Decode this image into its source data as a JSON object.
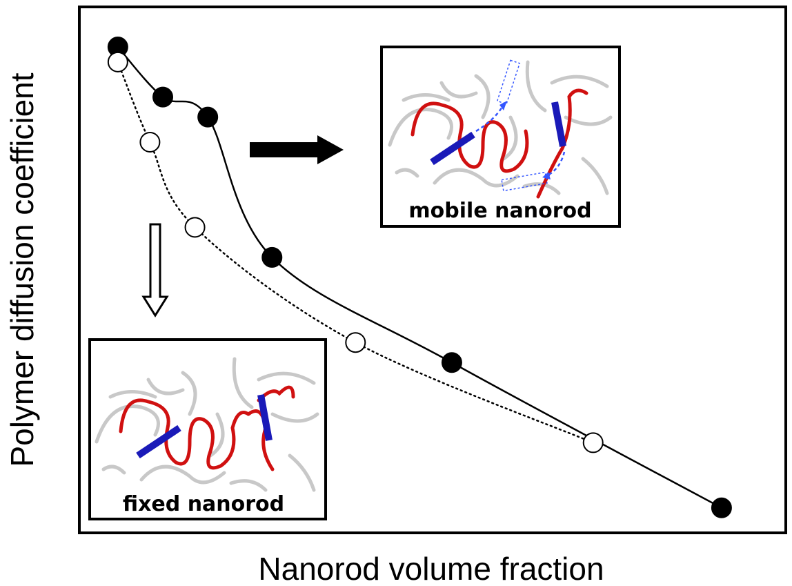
{
  "chart_data": {
    "type": "scatter",
    "xlabel": "Nanorod volume fraction",
    "ylabel": "Polymer diffusion coefficient",
    "title": "",
    "axis_ticks": false,
    "grid": false,
    "series": [
      {
        "marker": "filled-circle",
        "line_style": "solid",
        "color": "#000000",
        "x": [
          0.06,
          0.13,
          0.2,
          0.3,
          0.58,
          1.0
        ],
        "y": [
          0.97,
          0.87,
          0.83,
          0.55,
          0.34,
          0.05
        ]
      },
      {
        "marker": "open-circle",
        "line_style": "dotted",
        "color": "#000000",
        "x": [
          0.06,
          0.11,
          0.18,
          0.43,
          0.8
        ],
        "y": [
          0.94,
          0.78,
          0.61,
          0.38,
          0.18
        ]
      }
    ],
    "xlim": [
      0,
      1.1
    ],
    "ylim": [
      0,
      1.05
    ],
    "insets": [
      {
        "label": "mobile nanorod",
        "rods": "mobile"
      },
      {
        "label": "fixed nanorod",
        "rods": "fixed"
      }
    ],
    "annotations": [
      {
        "kind": "arrow",
        "style": "filled",
        "direction": "right",
        "points_to": "mobile nanorod"
      },
      {
        "kind": "arrow",
        "style": "hollow",
        "direction": "down",
        "points_to": "fixed nanorod"
      }
    ],
    "colors": {
      "polymer_gray": "#c8c8c8",
      "polymer_red": "#d01010",
      "nanorod_blue": "#1a1ab8",
      "motion_dash": "#3355ff"
    }
  }
}
